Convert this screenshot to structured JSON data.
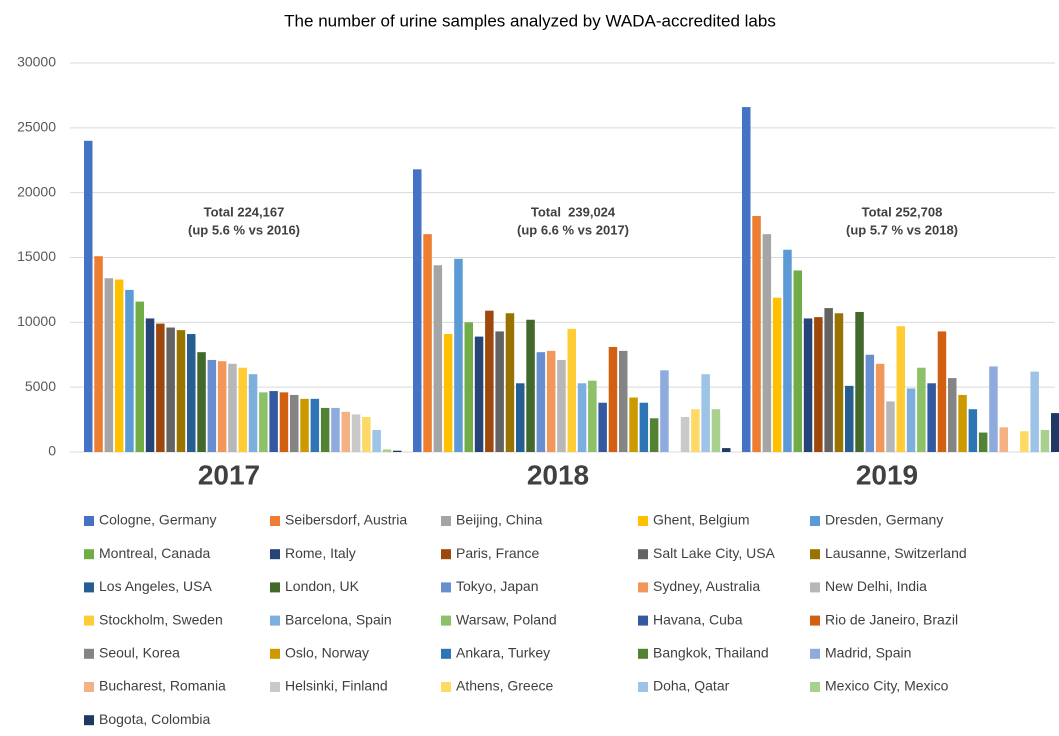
{
  "chart_data": {
    "type": "bar",
    "title": "The number of urine samples analyzed by WADA-accredited labs",
    "categories": [
      "2017",
      "2018",
      "2019"
    ],
    "annotations": [
      [
        "Total 224,167",
        "(up 5.6 % vs 2016)"
      ],
      [
        "Total  239,024",
        "(up 6.6 % vs 2017)"
      ],
      [
        "Total 252,708",
        "(up 5.7 % vs 2018)"
      ]
    ],
    "ylim": [
      0,
      30000
    ],
    "yticks": [
      0,
      5000,
      10000,
      15000,
      20000,
      25000,
      30000
    ],
    "grid": true,
    "series": [
      {
        "name": "Cologne, Germany",
        "color": "#4472c4",
        "values": [
          24000,
          21800,
          26600
        ]
      },
      {
        "name": "Seibersdorf, Austria",
        "color": "#ed7d31",
        "values": [
          15100,
          16800,
          18200
        ]
      },
      {
        "name": "Beijing, China",
        "color": "#a5a5a5",
        "values": [
          13400,
          14400,
          16800
        ]
      },
      {
        "name": "Ghent, Belgium",
        "color": "#ffc000",
        "values": [
          13300,
          9100,
          11900
        ]
      },
      {
        "name": "Dresden, Germany",
        "color": "#5b9bd5",
        "values": [
          12500,
          14900,
          15600
        ]
      },
      {
        "name": "Montreal, Canada",
        "color": "#70ad47",
        "values": [
          11600,
          10000,
          14000
        ]
      },
      {
        "name": "Rome, Italy",
        "color": "#264478",
        "values": [
          10300,
          8900,
          10300
        ]
      },
      {
        "name": "Paris, France",
        "color": "#9e480e",
        "values": [
          9900,
          10900,
          10400
        ]
      },
      {
        "name": "Salt Lake City, USA",
        "color": "#636363",
        "values": [
          9600,
          9300,
          11100
        ]
      },
      {
        "name": "Lausanne, Switzerland",
        "color": "#997300",
        "values": [
          9400,
          10700,
          10700
        ]
      },
      {
        "name": "Los Angeles, USA",
        "color": "#255e91",
        "values": [
          9100,
          5300,
          5100
        ]
      },
      {
        "name": "London, UK",
        "color": "#43682b",
        "values": [
          7700,
          10200,
          10800
        ]
      },
      {
        "name": "Tokyo, Japan",
        "color": "#698ed0",
        "values": [
          7100,
          7700,
          7500
        ]
      },
      {
        "name": "Sydney, Australia",
        "color": "#f1975a",
        "values": [
          7000,
          7800,
          6800
        ]
      },
      {
        "name": "New Delhi, India",
        "color": "#b7b7b7",
        "values": [
          6800,
          7100,
          3900
        ]
      },
      {
        "name": "Stockholm, Sweden",
        "color": "#ffcd33",
        "values": [
          6500,
          9500,
          9700
        ]
      },
      {
        "name": "Barcelona, Spain",
        "color": "#7cafdd",
        "values": [
          6000,
          5300,
          4900
        ]
      },
      {
        "name": "Warsaw, Poland",
        "color": "#8cc168",
        "values": [
          4600,
          5500,
          6500
        ]
      },
      {
        "name": "Havana, Cuba",
        "color": "#335aa1",
        "values": [
          4700,
          3800,
          5300
        ]
      },
      {
        "name": "Rio de Janeiro, Brazil",
        "color": "#d26012",
        "values": [
          4600,
          8100,
          9300
        ]
      },
      {
        "name": "Seoul, Korea",
        "color": "#848484",
        "values": [
          4400,
          7800,
          5700
        ]
      },
      {
        "name": "Oslo, Norway",
        "color": "#cc9a00",
        "values": [
          4100,
          4200,
          4400
        ]
      },
      {
        "name": "Ankara, Turkey",
        "color": "#2e75b6",
        "values": [
          4100,
          3800,
          3300
        ]
      },
      {
        "name": "Bangkok, Thailand",
        "color": "#548235",
        "values": [
          3400,
          2600,
          1500
        ]
      },
      {
        "name": "Madrid, Spain",
        "color": "#8faadc",
        "values": [
          3400,
          6300,
          6600
        ]
      },
      {
        "name": "Bucharest, Romania",
        "color": "#f4b183",
        "values": [
          3100,
          null,
          1900
        ]
      },
      {
        "name": "Helsinki, Finland",
        "color": "#c9c9c9",
        "values": [
          2900,
          2700,
          null
        ]
      },
      {
        "name": "Athens, Greece",
        "color": "#ffd966",
        "values": [
          2700,
          3300,
          1600
        ]
      },
      {
        "name": "Doha, Qatar",
        "color": "#9dc3e6",
        "values": [
          1700,
          6000,
          6200
        ]
      },
      {
        "name": "Mexico City, Mexico",
        "color": "#a9d18e",
        "values": [
          200,
          3300,
          1700
        ]
      },
      {
        "name": "Bogota, Colombia",
        "color": "#1f3864",
        "values": [
          100,
          300,
          3000
        ]
      }
    ]
  }
}
